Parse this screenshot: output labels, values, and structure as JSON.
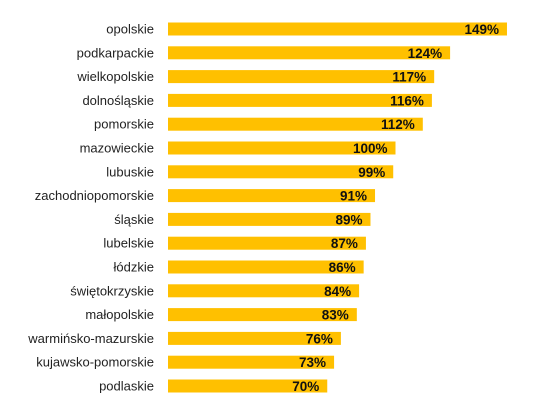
{
  "chart_data": {
    "type": "bar",
    "orientation": "horizontal",
    "categories": [
      "opolskie",
      "podkarpackie",
      "wielkopolskie",
      "dolnośląskie",
      "pomorskie",
      "mazowieckie",
      "lubuskie",
      "zachodniopomorskie",
      "śląskie",
      "lubelskie",
      "łódzkie",
      "świętokrzyskie",
      "małopolskie",
      "warmińsko-mazurskie",
      "kujawsko-pomorskie",
      "podlaskie"
    ],
    "values": [
      149,
      124,
      117,
      116,
      112,
      100,
      99,
      91,
      89,
      87,
      86,
      84,
      83,
      76,
      73,
      70
    ],
    "value_labels": [
      "149%",
      "124%",
      "117%",
      "116%",
      "112%",
      "100%",
      "99%",
      "91%",
      "89%",
      "87%",
      "86%",
      "84%",
      "83%",
      "76%",
      "73%",
      "70%"
    ],
    "unit": "%",
    "xlim": [
      0,
      150
    ],
    "grid": false,
    "bar_color": "#FFC000"
  }
}
